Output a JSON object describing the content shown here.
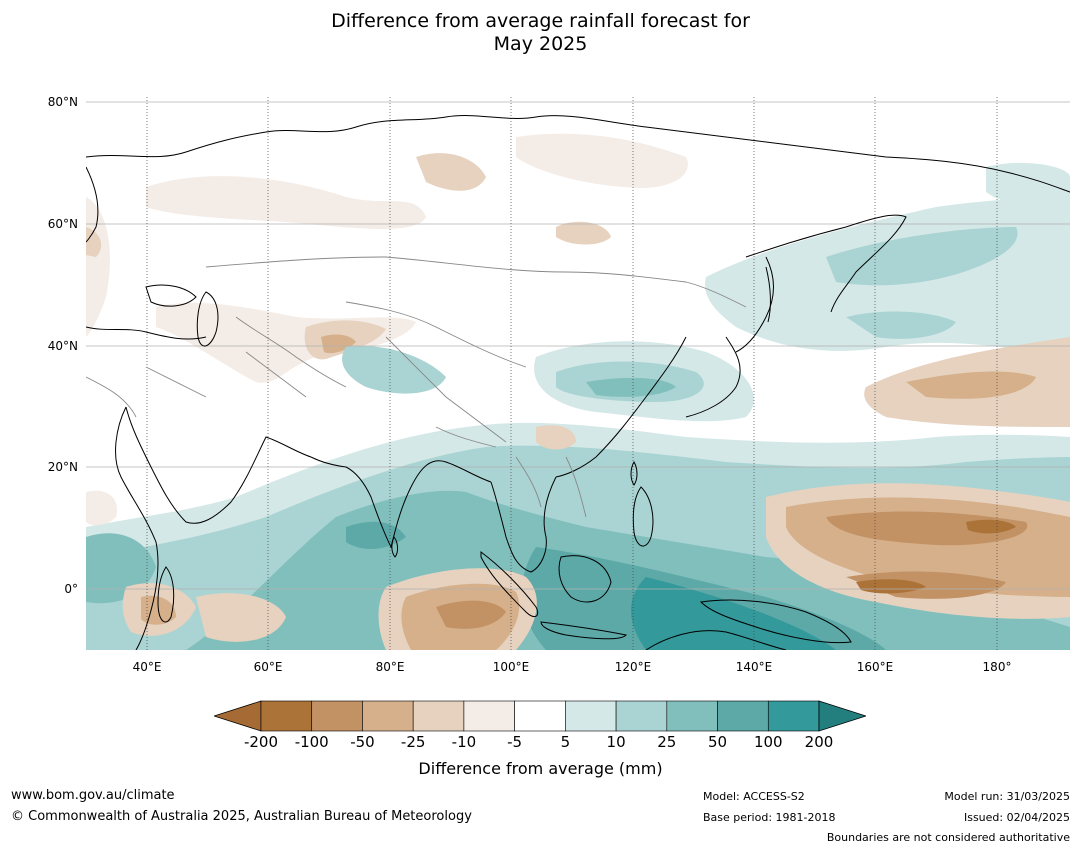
{
  "header": {
    "title_line1": "Difference from average rainfall forecast for",
    "title_line2": "May 2025"
  },
  "map": {
    "lat_labels": [
      "80°N",
      "60°N",
      "40°N",
      "20°N",
      "0°"
    ],
    "lon_labels": [
      "40°E",
      "60°E",
      "80°E",
      "100°E",
      "120°E",
      "140°E",
      "160°E",
      "180°"
    ],
    "extent": {
      "lon_min": 30,
      "lon_max": 192,
      "lat_min": -10,
      "lat_max": 81
    },
    "colors": {
      "land_outline": "#000000",
      "border": "#888888",
      "gridline": "#b0b0b0"
    }
  },
  "colorbar": {
    "title": "Difference from average (mm)",
    "tick_labels": [
      "-200",
      "-100",
      "-50",
      "-25",
      "-10",
      "-5",
      "5",
      "10",
      "25",
      "50",
      "100",
      "200"
    ],
    "colors": [
      "#a66b35",
      "#ab7338",
      "#c29265",
      "#d5b08b",
      "#e6d2bf",
      "#f4ece6",
      "#ffffff",
      "#d4e8e7",
      "#aad4d3",
      "#81bfbd",
      "#5ca9a8",
      "#33999a",
      "#237f7e"
    ]
  },
  "footer": {
    "website": "www.bom.gov.au/climate",
    "copyright": "© Commonwealth of Australia 2025, Australian Bureau of Meteorology",
    "model": "Model: ACCESS-S2",
    "base_period": "Base period: 1981-2018",
    "model_run": "Model run: 31/03/2025",
    "issued": "Issued: 02/04/2025",
    "disclaimer": "Boundaries are not considered authoritative"
  }
}
